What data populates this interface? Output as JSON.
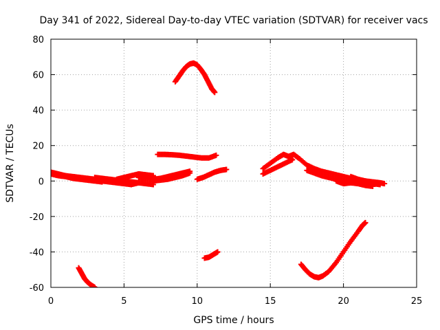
{
  "chart_data": {
    "type": "scatter",
    "title": "Day 341 of 2022, Sidereal Day-to-day VTEC variation (SDTVAR) for receiver vacs",
    "xlabel": "GPS time / hours",
    "ylabel": "SDTVAR / TECUs",
    "xlim": [
      0,
      25
    ],
    "ylim": [
      -60,
      80
    ],
    "xticks": [
      0,
      5,
      10,
      15,
      20,
      25
    ],
    "yticks": [
      -60,
      -40,
      -20,
      0,
      20,
      40,
      60,
      80
    ],
    "xtick_labels": [
      "0",
      "5",
      "10",
      "15",
      "20",
      "25"
    ],
    "ytick_labels": [
      "-60",
      "-40",
      "-20",
      "0",
      "20",
      "40",
      "60",
      "80"
    ],
    "grid": true,
    "marker_color": "#ff0000",
    "series": [
      {
        "name": "track-1",
        "points": [
          [
            0,
            5
          ],
          [
            0.5,
            4
          ],
          [
            1,
            3
          ],
          [
            1.5,
            2.5
          ],
          [
            2,
            2
          ],
          [
            2.5,
            1.5
          ],
          [
            3,
            1
          ]
        ]
      },
      {
        "name": "track-2",
        "points": [
          [
            0,
            4
          ],
          [
            0.5,
            3
          ],
          [
            1,
            2.5
          ],
          [
            1.5,
            1.5
          ],
          [
            2,
            1
          ],
          [
            2.5,
            0.5
          ],
          [
            3,
            0
          ],
          [
            3.5,
            -0.5
          ]
        ]
      },
      {
        "name": "track-3",
        "points": [
          [
            3,
            2
          ],
          [
            3.5,
            1.5
          ],
          [
            4,
            1
          ],
          [
            4.5,
            0.5
          ],
          [
            5,
            0
          ],
          [
            5.5,
            -0.5
          ],
          [
            6,
            -1
          ],
          [
            6.5,
            -1.5
          ],
          [
            7,
            -2
          ]
        ]
      },
      {
        "name": "track-4",
        "points": [
          [
            3.5,
            0
          ],
          [
            4,
            -0.5
          ],
          [
            4.5,
            -1
          ],
          [
            5,
            -1.5
          ],
          [
            5.5,
            -2
          ],
          [
            6,
            -1
          ]
        ]
      },
      {
        "name": "track-5",
        "points": [
          [
            4.5,
            1
          ],
          [
            5,
            2
          ],
          [
            5.5,
            3
          ],
          [
            6,
            4
          ],
          [
            6.5,
            3.5
          ],
          [
            7,
            3
          ]
        ]
      },
      {
        "name": "track-6",
        "points": [
          [
            6,
            2
          ],
          [
            6.5,
            1.5
          ],
          [
            7,
            1
          ],
          [
            7.5,
            1.5
          ],
          [
            8,
            2.5
          ],
          [
            8.5,
            3.5
          ],
          [
            9,
            4.5
          ],
          [
            9.5,
            5.5
          ]
        ]
      },
      {
        "name": "track-7",
        "points": [
          [
            7,
            0
          ],
          [
            7.5,
            0.5
          ],
          [
            8,
            1
          ],
          [
            8.5,
            2
          ],
          [
            9,
            3
          ],
          [
            9.5,
            4.5
          ]
        ]
      },
      {
        "name": "track-8",
        "points": [
          [
            7.3,
            15
          ],
          [
            7.8,
            15
          ],
          [
            8.3,
            14.8
          ],
          [
            8.8,
            14.5
          ],
          [
            9.3,
            14
          ],
          [
            9.8,
            13.5
          ],
          [
            10.3,
            13
          ],
          [
            10.8,
            13
          ],
          [
            11.3,
            14.5
          ]
        ]
      },
      {
        "name": "track-9",
        "points": [
          [
            10,
            1
          ],
          [
            10.4,
            2
          ],
          [
            10.8,
            3.5
          ],
          [
            11.2,
            5
          ],
          [
            11.6,
            6
          ],
          [
            12,
            6.5
          ]
        ]
      },
      {
        "name": "track-10",
        "points": [
          [
            8.5,
            56
          ],
          [
            8.75,
            59
          ],
          [
            9,
            62
          ],
          [
            9.25,
            64.5
          ],
          [
            9.5,
            66
          ],
          [
            9.75,
            66.5
          ],
          [
            10,
            65.5
          ],
          [
            10.25,
            63
          ],
          [
            10.5,
            60
          ],
          [
            10.75,
            56
          ],
          [
            11,
            52
          ],
          [
            11.2,
            50
          ]
        ]
      },
      {
        "name": "track-11",
        "points": [
          [
            10.5,
            -43.5
          ],
          [
            10.8,
            -43
          ],
          [
            11.1,
            -41.5
          ],
          [
            11.4,
            -40
          ]
        ]
      },
      {
        "name": "track-12",
        "points": [
          [
            1.9,
            -49
          ],
          [
            2.1,
            -52
          ],
          [
            2.3,
            -55
          ],
          [
            2.5,
            -57
          ],
          [
            2.8,
            -59
          ],
          [
            3,
            -60
          ]
        ]
      },
      {
        "name": "track-13",
        "points": [
          [
            14.5,
            4
          ],
          [
            15,
            6
          ],
          [
            15.5,
            8
          ],
          [
            16,
            10
          ],
          [
            16.5,
            12
          ]
        ]
      },
      {
        "name": "track-14",
        "points": [
          [
            14.5,
            7
          ],
          [
            15,
            10
          ],
          [
            15.5,
            13
          ],
          [
            15.9,
            15
          ],
          [
            16.2,
            14
          ],
          [
            16.5,
            12
          ]
        ]
      },
      {
        "name": "track-15",
        "points": [
          [
            16.3,
            14
          ],
          [
            16.6,
            15
          ],
          [
            17,
            12.5
          ],
          [
            17.5,
            9
          ],
          [
            18,
            7
          ],
          [
            18.5,
            5.5
          ],
          [
            19,
            4.5
          ],
          [
            19.5,
            3.5
          ],
          [
            20,
            2.5
          ],
          [
            20.5,
            1.5
          ],
          [
            21,
            0.5
          ],
          [
            21.5,
            -0.5
          ],
          [
            22,
            -1.5
          ],
          [
            22.5,
            -2
          ]
        ]
      },
      {
        "name": "track-16",
        "points": [
          [
            17.5,
            6
          ],
          [
            18,
            4.5
          ],
          [
            18.5,
            3
          ],
          [
            19,
            2
          ],
          [
            19.5,
            1
          ],
          [
            20,
            0
          ],
          [
            20.5,
            -1
          ],
          [
            21,
            -1.5
          ],
          [
            21.5,
            -2.5
          ],
          [
            22,
            -3
          ]
        ]
      },
      {
        "name": "track-17",
        "points": [
          [
            19.5,
            0
          ],
          [
            20,
            -1.5
          ],
          [
            20.5,
            -1
          ],
          [
            21,
            0.5
          ],
          [
            21.5,
            0
          ],
          [
            22,
            -0.5
          ],
          [
            22.5,
            -1
          ],
          [
            22.8,
            -1.5
          ]
        ]
      },
      {
        "name": "track-18",
        "points": [
          [
            20.5,
            2.5
          ],
          [
            21,
            1
          ],
          [
            21.5,
            0
          ],
          [
            22,
            -1
          ],
          [
            22.5,
            -1.5
          ]
        ]
      },
      {
        "name": "track-19",
        "points": [
          [
            17.1,
            -47
          ],
          [
            17.4,
            -50
          ],
          [
            17.7,
            -52.5
          ],
          [
            18,
            -54
          ],
          [
            18.3,
            -54.5
          ],
          [
            18.6,
            -53.5
          ],
          [
            19,
            -51
          ],
          [
            19.5,
            -46
          ],
          [
            20,
            -40
          ],
          [
            20.5,
            -34
          ],
          [
            21,
            -28.5
          ],
          [
            21.3,
            -25
          ],
          [
            21.5,
            -23.5
          ]
        ]
      }
    ]
  }
}
